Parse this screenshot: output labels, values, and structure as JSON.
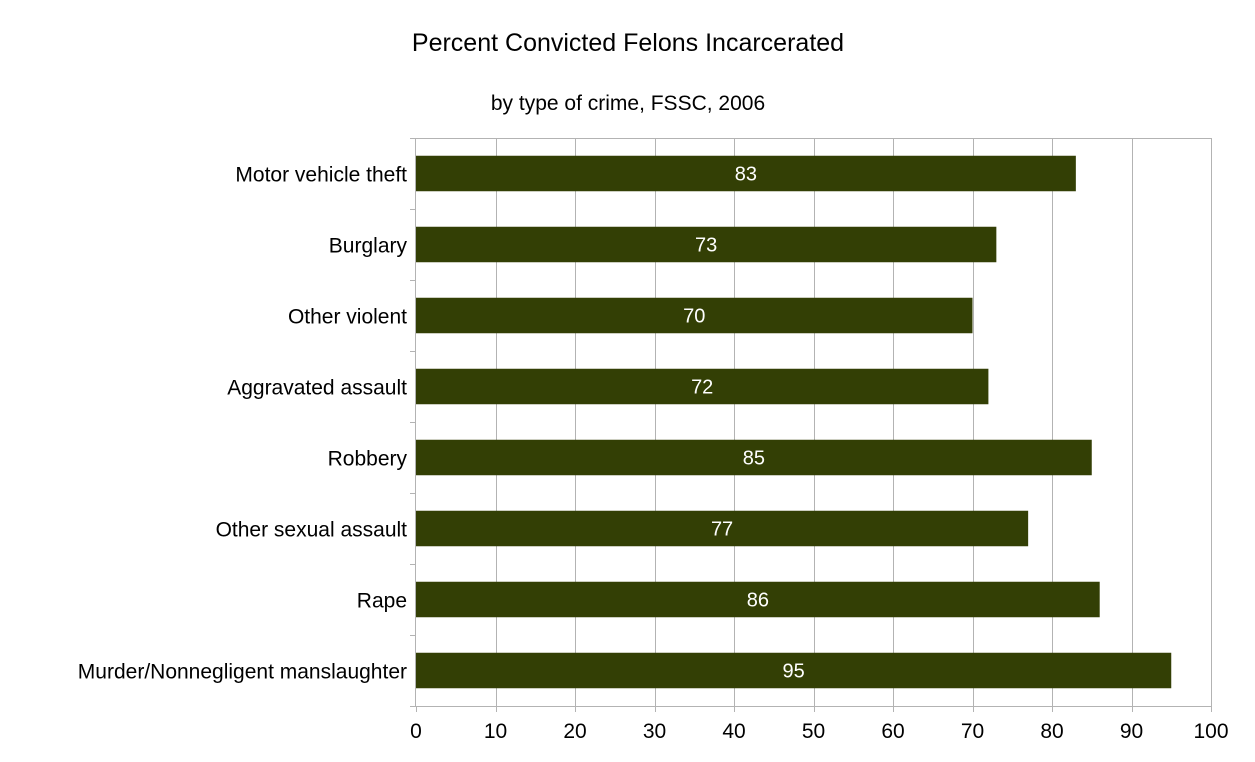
{
  "chart_data": {
    "type": "bar",
    "orientation": "horizontal",
    "title": "Percent Convicted Felons Incarcerated",
    "subtitle": "by type of crime, FSSC, 2006",
    "xlabel": "",
    "ylabel": "",
    "categories": [
      "Murder/Nonnegligent manslaughter",
      "Rape",
      "Other sexual assault",
      "Robbery",
      "Aggravated assault",
      "Other violent",
      "Burglary",
      "Motor vehicle theft"
    ],
    "values": [
      95,
      86,
      77,
      85,
      72,
      70,
      73,
      83
    ],
    "xlim": [
      0,
      100
    ],
    "x_ticks": [
      0,
      10,
      20,
      30,
      40,
      50,
      60,
      70,
      80,
      90,
      100
    ],
    "grid": "vertical",
    "legend": "none",
    "data_labels": "inside-center",
    "colors": {
      "bar": "#333f05",
      "bar_label": "#ffffff",
      "grid": "#b3b3b3",
      "axis": "#b3b3b3",
      "text": "#000000"
    }
  }
}
